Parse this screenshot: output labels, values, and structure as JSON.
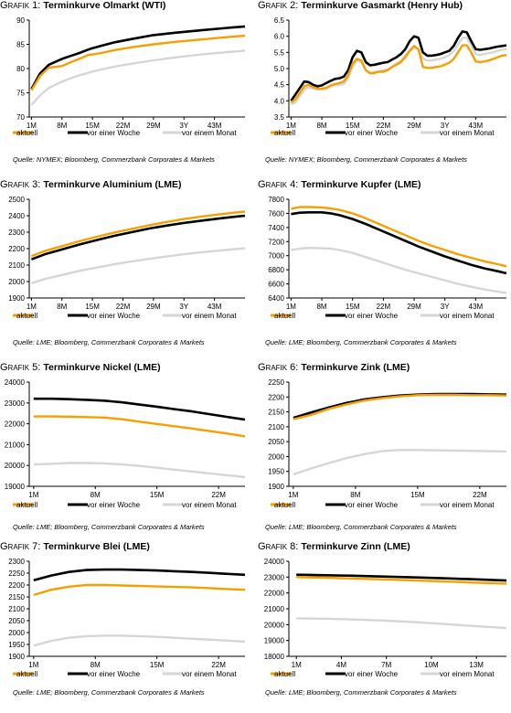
{
  "legend_labels": [
    "aktuell",
    "vor einer Woche",
    "vor einem Monat"
  ],
  "series_colors": {
    "aktuell": "#f5a000",
    "vor einer Woche": "#000000",
    "vor einem Monat": "#d6d6d6"
  },
  "sources": {
    "row1": "Quelle: NYMEX; Bloomberg, Commerzbank Corporates & Markets",
    "row2": "Quelle: LME; Bloomberg, Commerzbank Corporates & Markets",
    "row3": "Quelle: LME; Bloomberg, Commerzbank Corporates & Markets",
    "row4": "Quelle: LME; Bloomberg, Commerzbank Corporates & Markets"
  },
  "chart_data": [
    {
      "label": "Grafik 1:",
      "title": "Terminkurve Olmarkt (WTI)",
      "type": "line",
      "x": [
        1,
        3,
        5,
        8,
        10,
        12,
        14,
        15,
        17,
        20,
        24,
        29,
        34,
        40,
        46,
        50
      ],
      "xticks": [
        "1M",
        "8M",
        "15M",
        "22M",
        "29M",
        "3Y",
        "43M"
      ],
      "xtick_pos": [
        1,
        8,
        15,
        22,
        29,
        36,
        43
      ],
      "xlim": [
        0.5,
        50
      ],
      "ylim": [
        70,
        90
      ],
      "yticks": [
        70,
        75,
        80,
        85,
        90
      ],
      "series": [
        {
          "name": "aktuell",
          "values": [
            75.5,
            78.5,
            80.2,
            80.5,
            81.3,
            82.0,
            82.8,
            82.9,
            83.2,
            83.8,
            84.4,
            85.0,
            85.5,
            86.0,
            86.5,
            86.8
          ]
        },
        {
          "name": "vor einer Woche",
          "values": [
            75.8,
            79.0,
            80.8,
            82.0,
            82.6,
            83.2,
            83.9,
            84.2,
            84.7,
            85.4,
            86.1,
            86.9,
            87.4,
            87.9,
            88.4,
            88.7
          ]
        },
        {
          "name": "vor einem Monat",
          "values": [
            72.5,
            74.5,
            76.0,
            77.3,
            78.0,
            78.6,
            79.1,
            79.4,
            79.8,
            80.4,
            81.0,
            81.7,
            82.3,
            82.9,
            83.4,
            83.7
          ]
        }
      ]
    },
    {
      "label": "Grafik 2:",
      "title": "Terminkurve Gasmarkt (Henry Hub)",
      "type": "line",
      "x": [
        1,
        2,
        4,
        5,
        6,
        7,
        8,
        9,
        10,
        11,
        12,
        13,
        14,
        15,
        16,
        17,
        18,
        19,
        20,
        21,
        22,
        23,
        24,
        25,
        26,
        27,
        28,
        29,
        30,
        31,
        32,
        33,
        34,
        35,
        36,
        37,
        38,
        39,
        40,
        41,
        42,
        43,
        44,
        45,
        46,
        47,
        48,
        49,
        50
      ],
      "xticks": [
        "1M",
        "8M",
        "15M",
        "22M",
        "29M",
        "3Y",
        "43M"
      ],
      "xtick_pos": [
        1,
        8,
        15,
        22,
        29,
        36,
        43
      ],
      "xlim": [
        0.5,
        50
      ],
      "ylim": [
        3.5,
        6.5
      ],
      "yticks": [
        3.5,
        4.0,
        4.5,
        5.0,
        5.5,
        6.0,
        6.5
      ],
      "series": [
        {
          "name": "aktuell",
          "values": [
            3.95,
            4.05,
            4.45,
            4.5,
            4.42,
            4.38,
            4.38,
            4.4,
            4.48,
            4.52,
            4.55,
            4.6,
            4.8,
            5.15,
            5.3,
            5.25,
            4.95,
            4.85,
            4.86,
            4.9,
            4.9,
            4.95,
            5.05,
            5.12,
            5.2,
            5.35,
            5.55,
            5.7,
            5.6,
            5.05,
            5.02,
            5.02,
            5.05,
            5.07,
            5.12,
            5.18,
            5.3,
            5.5,
            5.72,
            5.72,
            5.5,
            5.22,
            5.2,
            5.22,
            5.25,
            5.3,
            5.35,
            5.4,
            5.42
          ]
        },
        {
          "name": "vor einer Woche",
          "values": [
            4.0,
            4.2,
            4.6,
            4.58,
            4.5,
            4.45,
            4.48,
            4.55,
            4.62,
            4.68,
            4.7,
            4.75,
            4.95,
            5.35,
            5.55,
            5.5,
            5.2,
            5.1,
            5.12,
            5.15,
            5.18,
            5.2,
            5.28,
            5.35,
            5.45,
            5.6,
            5.85,
            6.0,
            5.95,
            5.5,
            5.4,
            5.4,
            5.42,
            5.45,
            5.5,
            5.55,
            5.7,
            5.95,
            6.15,
            6.12,
            5.85,
            5.6,
            5.58,
            5.6,
            5.62,
            5.65,
            5.68,
            5.7,
            5.72
          ]
        },
        {
          "name": "vor einem Monat",
          "values": [
            3.9,
            3.95,
            4.35,
            4.42,
            4.38,
            4.35,
            4.35,
            4.38,
            4.44,
            4.48,
            4.5,
            4.52,
            4.7,
            5.05,
            5.25,
            5.2,
            4.95,
            4.88,
            4.9,
            4.92,
            4.95,
            4.98,
            5.05,
            5.15,
            5.25,
            5.4,
            5.55,
            5.65,
            5.6,
            5.3,
            5.25,
            5.25,
            5.28,
            5.3,
            5.35,
            5.42,
            5.55,
            5.75,
            5.95,
            5.95,
            5.72,
            5.45,
            5.42,
            5.45,
            5.48,
            5.5,
            5.55,
            5.58,
            5.6
          ]
        }
      ]
    },
    {
      "label": "Grafik 3:",
      "title": "Terminkurve Aluminium (LME)",
      "type": "line",
      "x": [
        1,
        4,
        8,
        12,
        16,
        20,
        24,
        28,
        32,
        36,
        40,
        44,
        48,
        50
      ],
      "xticks": [
        "1M",
        "8M",
        "15M",
        "22M",
        "29M",
        "3Y",
        "43M"
      ],
      "xtick_pos": [
        1,
        8,
        15,
        22,
        29,
        36,
        43
      ],
      "xlim": [
        0.5,
        50
      ],
      "ylim": [
        1900,
        2500
      ],
      "yticks": [
        1900,
        2000,
        2100,
        2200,
        2300,
        2400,
        2500
      ],
      "series": [
        {
          "name": "aktuell",
          "values": [
            2155,
            2185,
            2215,
            2245,
            2272,
            2298,
            2320,
            2342,
            2362,
            2380,
            2395,
            2408,
            2420,
            2425
          ]
        },
        {
          "name": "vor einer Woche",
          "values": [
            2135,
            2165,
            2195,
            2225,
            2252,
            2278,
            2300,
            2322,
            2340,
            2356,
            2370,
            2383,
            2395,
            2400
          ]
        },
        {
          "name": "vor einem Monat",
          "values": [
            1990,
            2015,
            2040,
            2065,
            2085,
            2105,
            2122,
            2138,
            2152,
            2166,
            2178,
            2188,
            2198,
            2202
          ]
        }
      ]
    },
    {
      "label": "Grafik 4:",
      "title": "Terminkurve Kupfer (LME)",
      "type": "line",
      "x": [
        1,
        3,
        5,
        8,
        10,
        12,
        15,
        18,
        21,
        24,
        27,
        30,
        33,
        36,
        39,
        42,
        45,
        48,
        50
      ],
      "xticks": [
        "1M",
        "8M",
        "15M",
        "22M",
        "29M",
        "3Y",
        "43M"
      ],
      "xtick_pos": [
        1,
        8,
        15,
        22,
        29,
        36,
        43
      ],
      "xlim": [
        0.5,
        50
      ],
      "ylim": [
        6400,
        7800
      ],
      "yticks": [
        6400,
        6600,
        6800,
        7000,
        7200,
        7400,
        7600,
        7800
      ],
      "series": [
        {
          "name": "aktuell",
          "values": [
            7665,
            7690,
            7690,
            7685,
            7670,
            7650,
            7600,
            7530,
            7450,
            7370,
            7290,
            7210,
            7140,
            7080,
            7020,
            6970,
            6920,
            6880,
            6850
          ]
        },
        {
          "name": "vor einer Woche",
          "values": [
            7590,
            7610,
            7615,
            7615,
            7600,
            7575,
            7520,
            7450,
            7370,
            7290,
            7210,
            7130,
            7060,
            6990,
            6930,
            6870,
            6820,
            6780,
            6750
          ]
        },
        {
          "name": "vor einem Monat",
          "values": [
            7080,
            7100,
            7110,
            7105,
            7100,
            7080,
            7040,
            6980,
            6920,
            6860,
            6800,
            6750,
            6700,
            6650,
            6600,
            6560,
            6520,
            6490,
            6470
          ]
        }
      ]
    },
    {
      "label": "Grafik 5:",
      "title": "Terminkurve Nickel (LME)",
      "type": "line",
      "x": [
        1,
        3,
        5,
        7,
        9,
        11,
        13,
        15,
        17,
        19,
        21,
        23,
        25
      ],
      "xticks": [
        "1M",
        "8M",
        "15M",
        "22M"
      ],
      "xtick_pos": [
        1,
        8,
        15,
        22
      ],
      "xlim": [
        0.5,
        25
      ],
      "ylim": [
        19000,
        24000
      ],
      "yticks": [
        19000,
        20000,
        21000,
        22000,
        23000,
        24000
      ],
      "series": [
        {
          "name": "aktuell",
          "values": [
            22350,
            22350,
            22340,
            22320,
            22300,
            22220,
            22100,
            21990,
            21880,
            21770,
            21650,
            21530,
            21400
          ]
        },
        {
          "name": "vor einer Woche",
          "values": [
            23200,
            23200,
            23180,
            23150,
            23110,
            23030,
            22920,
            22820,
            22700,
            22590,
            22460,
            22330,
            22200
          ]
        },
        {
          "name": "vor einem Monat",
          "values": [
            20050,
            20080,
            20120,
            20120,
            20100,
            20050,
            19980,
            19890,
            19800,
            19710,
            19620,
            19530,
            19440
          ]
        }
      ]
    },
    {
      "label": "Grafik 6:",
      "title": "Terminkurve Zink (LME)",
      "type": "line",
      "x": [
        1,
        3,
        5,
        7,
        9,
        11,
        13,
        15,
        17,
        19,
        21,
        23,
        25
      ],
      "xticks": [
        "1M",
        "8M",
        "15M",
        "22M"
      ],
      "xtick_pos": [
        1,
        8,
        15,
        22
      ],
      "xlim": [
        0.5,
        25
      ],
      "ylim": [
        1900,
        2250
      ],
      "yticks": [
        1900,
        1950,
        2000,
        2050,
        2100,
        2150,
        2200,
        2250
      ],
      "series": [
        {
          "name": "aktuell",
          "values": [
            2125,
            2140,
            2160,
            2175,
            2188,
            2196,
            2202,
            2206,
            2207,
            2207,
            2206,
            2206,
            2205
          ]
        },
        {
          "name": "vor einer Woche",
          "values": [
            2130,
            2148,
            2165,
            2180,
            2192,
            2199,
            2205,
            2208,
            2210,
            2210,
            2210,
            2209,
            2208
          ]
        },
        {
          "name": "vor einem Monat",
          "values": [
            1940,
            1960,
            1978,
            1995,
            2008,
            2018,
            2022,
            2022,
            2021,
            2020,
            2019,
            2018,
            2017
          ]
        }
      ]
    },
    {
      "label": "Grafik 7:",
      "title": "Terminkurve Blei (LME)",
      "type": "line",
      "x": [
        1,
        3,
        5,
        7,
        9,
        11,
        13,
        15,
        17,
        19,
        21,
        23,
        25
      ],
      "xticks": [
        "1M",
        "8M",
        "15M",
        "22M"
      ],
      "xtick_pos": [
        1,
        8,
        15,
        22
      ],
      "xlim": [
        0.5,
        25
      ],
      "ylim": [
        1900,
        2300
      ],
      "yticks": [
        1900,
        1950,
        2000,
        2050,
        2100,
        2150,
        2200,
        2250,
        2300
      ],
      "series": [
        {
          "name": "aktuell",
          "values": [
            2158,
            2180,
            2193,
            2200,
            2200,
            2198,
            2196,
            2194,
            2192,
            2190,
            2187,
            2183,
            2180
          ]
        },
        {
          "name": "vor einer Woche",
          "values": [
            2220,
            2240,
            2255,
            2263,
            2265,
            2265,
            2263,
            2261,
            2258,
            2255,
            2251,
            2247,
            2243
          ]
        },
        {
          "name": "vor einem Monat",
          "values": [
            1945,
            1965,
            1978,
            1985,
            1987,
            1987,
            1985,
            1982,
            1978,
            1974,
            1970,
            1966,
            1962
          ]
        }
      ]
    },
    {
      "label": "Grafik 8:",
      "title": "Terminkurve Zinn (LME)",
      "type": "line",
      "x": [
        1,
        3,
        5,
        7,
        9,
        11,
        13,
        15
      ],
      "xticks": [
        "1M",
        "4M",
        "7M",
        "10M",
        "13M"
      ],
      "xtick_pos": [
        1,
        4,
        7,
        10,
        13
      ],
      "xlim": [
        0.5,
        15
      ],
      "ylim": [
        18000,
        24000
      ],
      "yticks": [
        18000,
        19000,
        20000,
        21000,
        22000,
        23000,
        24000
      ],
      "series": [
        {
          "name": "aktuell",
          "values": [
            23000,
            22960,
            22900,
            22850,
            22780,
            22720,
            22650,
            22580
          ]
        },
        {
          "name": "vor einer Woche",
          "values": [
            23150,
            23120,
            23080,
            23030,
            22980,
            22920,
            22860,
            22780
          ]
        },
        {
          "name": "vor einem Monat",
          "values": [
            20400,
            20370,
            20320,
            20250,
            20150,
            20030,
            19900,
            19780
          ]
        }
      ]
    }
  ]
}
